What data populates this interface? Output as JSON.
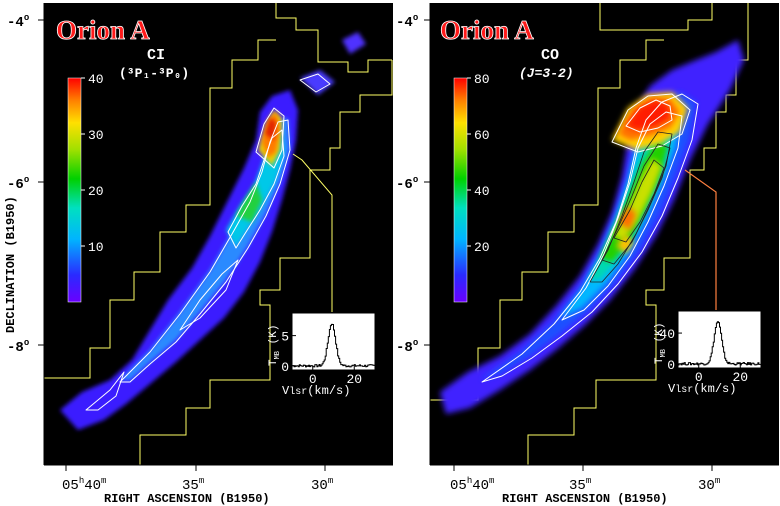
{
  "figure": {
    "ylabel": "DECLINATION (B1950)",
    "xlabel": "RIGHT ASCENSION (B1950)",
    "dec_ticks": [
      {
        "deg": "-4",
        "sup": "o"
      },
      {
        "deg": "-6",
        "sup": "o"
      },
      {
        "deg": "-8",
        "sup": "o"
      }
    ],
    "ra_ticks": [
      {
        "main": "05",
        "h": "h",
        "min": "40",
        "m": "m"
      },
      {
        "main": "35",
        "m": "m"
      },
      {
        "main": "30",
        "m": "m"
      }
    ],
    "colors": {
      "background": "#000000",
      "boundary": "#ffff66",
      "title": "#ff1a1a",
      "contour": "#ffffff"
    }
  },
  "panels": [
    {
      "title": "Orion A",
      "line_main": "CI",
      "line_sub": "(³P₁-³P₀)",
      "colorbar_ticks": [
        "40",
        "30",
        "20",
        "10"
      ],
      "colorbar_max": 40,
      "colorbar_tick_values": [
        40,
        30,
        20,
        10
      ],
      "spectrum": {
        "ylabel_main": "T",
        "ylabel_sub": "MB",
        "ylabel_unit": "(K)",
        "yticks": [
          "5",
          "0"
        ],
        "xticks": [
          "0",
          "20"
        ],
        "xlabel": "V",
        "xlabel_sub": "lsr",
        "xlabel_unit": "(km/s)",
        "peak_velocity_kms": 9,
        "peak_K": 7
      }
    },
    {
      "title": "Orion A",
      "line_main": "CO",
      "line_sub": "(J=3-2)",
      "colorbar_ticks": [
        "80",
        "60",
        "40",
        "20"
      ],
      "colorbar_max": 80,
      "colorbar_tick_values": [
        80,
        60,
        40,
        20
      ],
      "spectrum": {
        "ylabel_main": "T",
        "ylabel_sub": "MB",
        "ylabel_unit": "(K)",
        "yticks": [
          "40",
          "0"
        ],
        "xticks": [
          "0",
          "20"
        ],
        "xlabel": "V",
        "xlabel_sub": "lsr",
        "xlabel_unit": "(km/s)",
        "peak_velocity_kms": 9,
        "peak_K": 55
      }
    }
  ]
}
